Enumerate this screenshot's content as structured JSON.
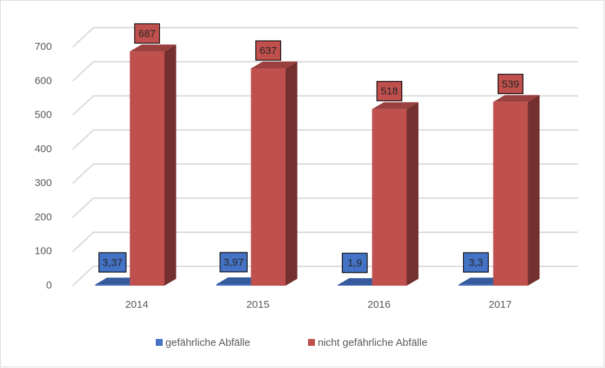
{
  "chart_data": {
    "type": "bar3d",
    "categories": [
      "2014",
      "2015",
      "2016",
      "2017"
    ],
    "series": [
      {
        "name": "gefährliche Abfälle",
        "color": "#4472c4",
        "values": [
          3.37,
          3.97,
          1.9,
          3.3
        ],
        "value_labels": [
          "3,37",
          "3,97",
          "1,9",
          "3,3"
        ]
      },
      {
        "name": "nicht gefährliche Abfälle",
        "color": "#c0504d",
        "values": [
          687,
          637,
          518,
          539
        ]
      }
    ],
    "ylim": [
      0,
      700
    ],
    "yticks": [
      0,
      100,
      200,
      300,
      400,
      500,
      600,
      700
    ],
    "grid": true,
    "legend": "bottom"
  }
}
